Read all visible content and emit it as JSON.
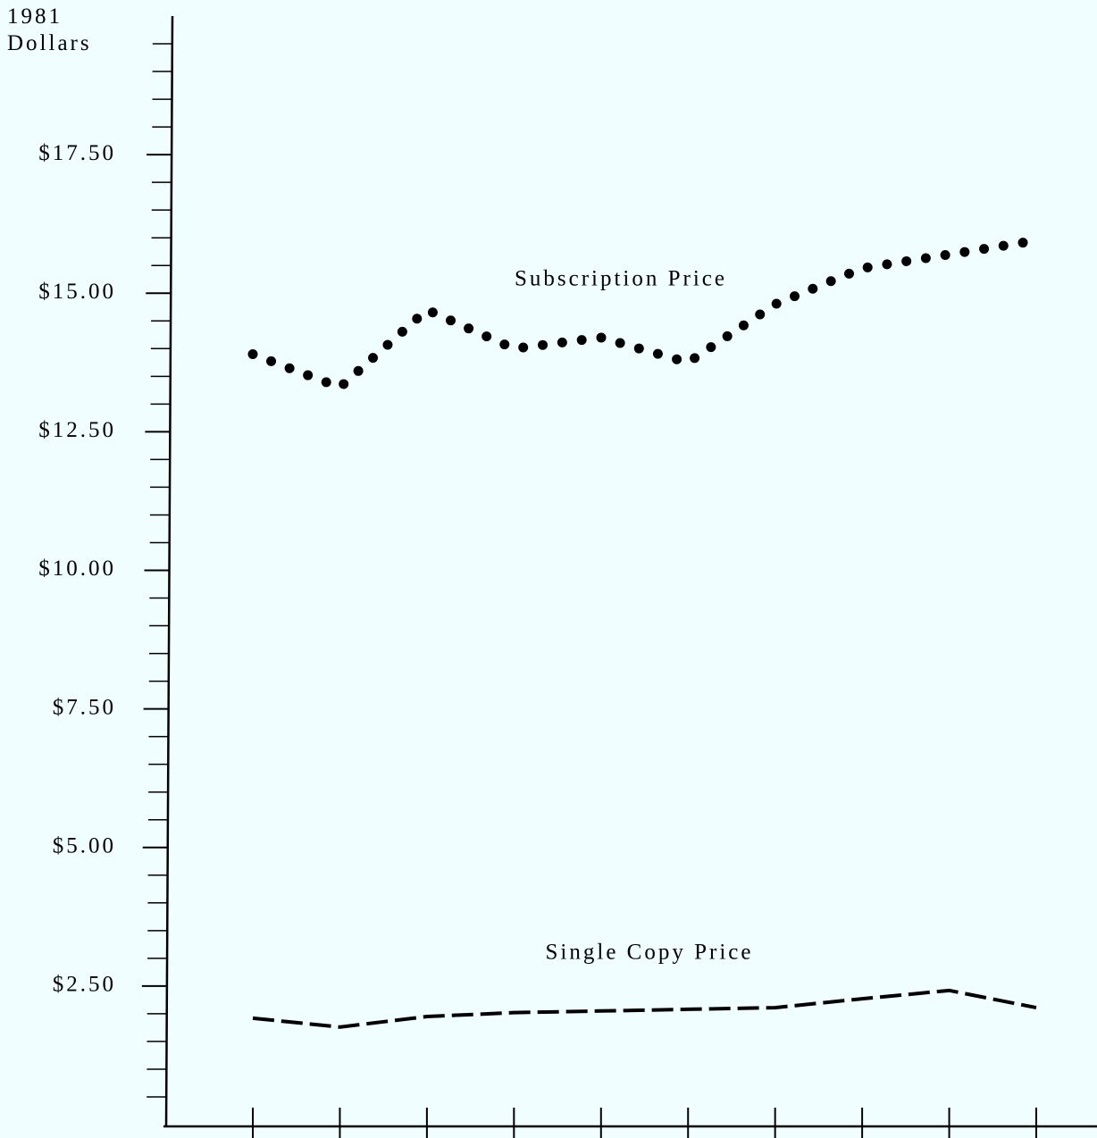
{
  "chart_data": {
    "type": "line",
    "ylabel": "1981 Dollars",
    "categories": [
      null,
      null,
      null,
      null,
      null,
      null,
      null,
      null,
      null,
      null
    ],
    "series": [
      {
        "name": "Subscription Price",
        "color": "#000000",
        "style": "dotted",
        "values": [
          13.9,
          13.3,
          14.7,
          14.0,
          14.2,
          13.75,
          14.8,
          15.45,
          15.7,
          15.95
        ]
      },
      {
        "name": "Single Copy Price",
        "color": "#000000",
        "style": "dashed",
        "values": [
          1.92,
          1.76,
          1.95,
          2.02,
          2.05,
          2.08,
          2.11,
          2.27,
          2.42,
          2.11
        ]
      }
    ],
    "ylim": [
      0,
      20
    ],
    "yticks": [
      {
        "value": 2.5,
        "label": "$2.50"
      },
      {
        "value": 5,
        "label": "$5.00"
      },
      {
        "value": 7.5,
        "label": "$7.50"
      },
      {
        "value": 10,
        "label": "$10.00"
      },
      {
        "value": 12.5,
        "label": "$12.50"
      },
      {
        "value": 15,
        "label": "$15.00"
      },
      {
        "value": 17.5,
        "label": "$17.50"
      }
    ],
    "yticks_minor": [
      0.5,
      1,
      1.5,
      2,
      3,
      3.5,
      4,
      4.5,
      5.5,
      6,
      6.5,
      7,
      8,
      8.5,
      9,
      9.5,
      10.5,
      11,
      11.5,
      12,
      13,
      13.5,
      14,
      14.5,
      15.5,
      16,
      16.5,
      17,
      18,
      18.5,
      19,
      19.5
    ],
    "grid": false
  }
}
